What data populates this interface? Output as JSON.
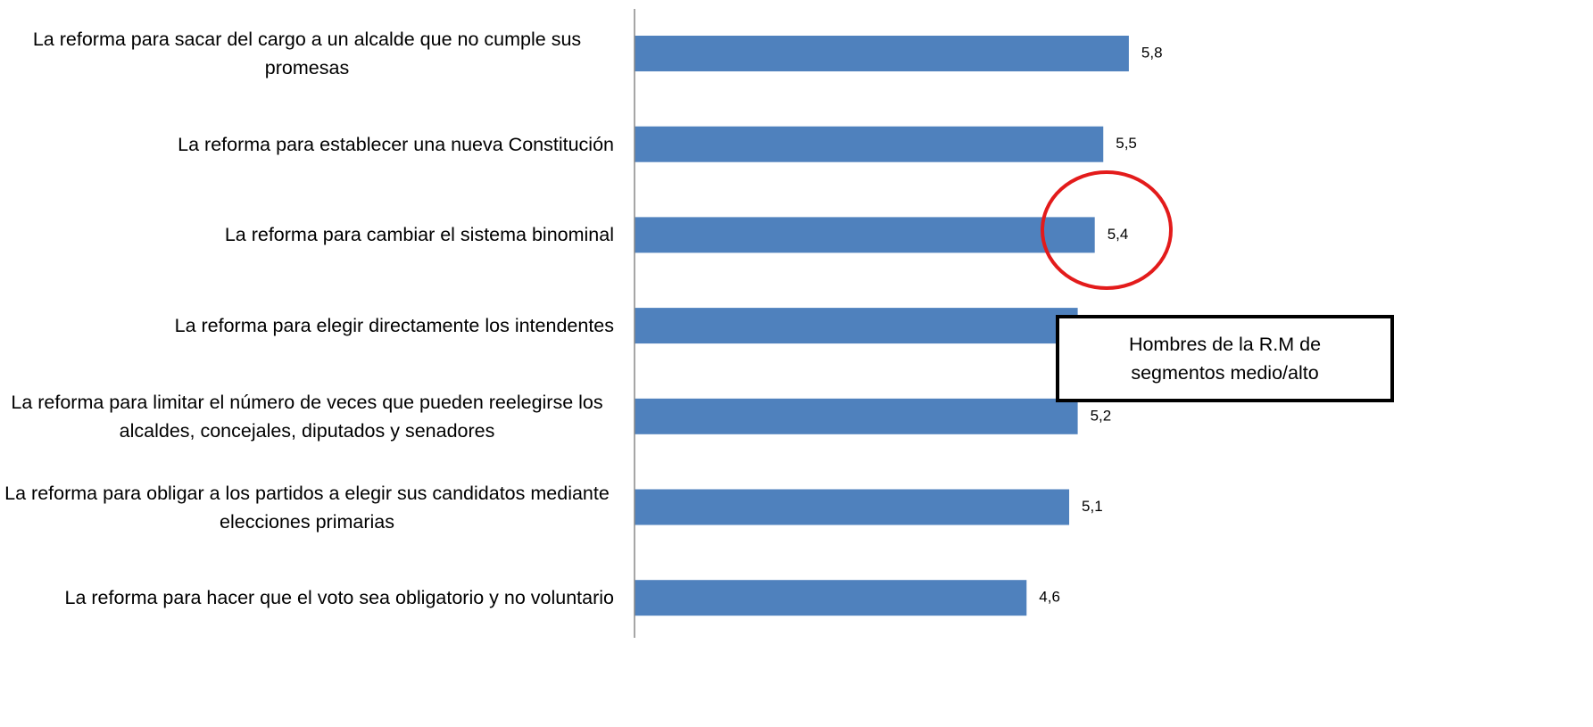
{
  "chart_data": {
    "type": "bar",
    "orientation": "horizontal",
    "categories": [
      "La reforma para sacar del cargo a un alcalde que no cumple sus promesas",
      "La reforma para establecer una nueva Constitución",
      "La reforma para cambiar el sistema binominal",
      "La reforma para elegir directamente los intendentes",
      "La reforma para limitar el número de veces que pueden reelegirse los alcaldes, concejales, diputados y senadores",
      "La reforma para obligar a los partidos a elegir sus candidatos mediante elecciones primarias",
      "La reforma para hacer que el voto sea obligatorio y no voluntario"
    ],
    "values": [
      5.8,
      5.5,
      5.4,
      5.2,
      5.2,
      5.1,
      4.6
    ],
    "value_labels": [
      "5,8",
      "5,5",
      "5,4",
      null,
      "5,2",
      "5,1",
      "4,6"
    ],
    "color": "#4f81bd",
    "xlim": [
      0,
      7
    ],
    "annotation": "Hombres de la R.M de segmentos medio/alto"
  }
}
